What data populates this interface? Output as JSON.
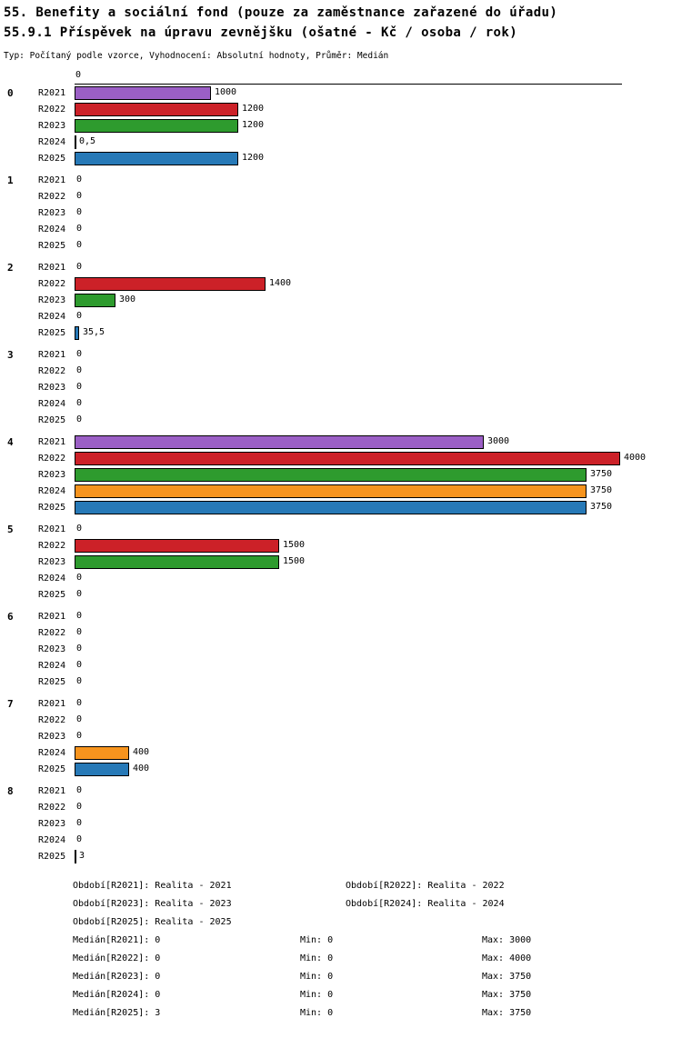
{
  "chart_data": {
    "type": "bar",
    "orientation": "horizontal",
    "title": "55. Benefity a sociální fond (pouze za zaměstnance zařazené do úřadu)",
    "subtitle": "55.9.1 Příspěvek na úpravu zevnějšku (ošatné - Kč / osoba / rok)",
    "meta": "Typ: Počítaný podle vzorce, Vyhodnocení: Absolutní hodnoty, Průměr: Medián",
    "axis_top_tick": "0",
    "xlim": [
      0,
      4000
    ],
    "grid": false,
    "legend_position": "bottom",
    "series_labels": [
      "R2021",
      "R2022",
      "R2023",
      "R2024",
      "R2025"
    ],
    "series_colors": [
      "#9B5FC5",
      "#CC2128",
      "#2E9B2E",
      "#F7941E",
      "#2779B7"
    ],
    "groups": [
      {
        "label": "0",
        "values": [
          1000,
          1200,
          1200,
          0.5,
          1200
        ],
        "display": [
          "1000",
          "1200",
          "1200",
          "0,5",
          "1200"
        ]
      },
      {
        "label": "1",
        "values": [
          0,
          0,
          0,
          0,
          0
        ],
        "display": [
          "0",
          "0",
          "0",
          "0",
          "0"
        ]
      },
      {
        "label": "2",
        "values": [
          0,
          1400,
          300,
          0,
          35.5
        ],
        "display": [
          "0",
          "1400",
          "300",
          "0",
          "35,5"
        ]
      },
      {
        "label": "3",
        "values": [
          0,
          0,
          0,
          0,
          0
        ],
        "display": [
          "0",
          "0",
          "0",
          "0",
          "0"
        ]
      },
      {
        "label": "4",
        "values": [
          3000,
          4000,
          3750,
          3750,
          3750
        ],
        "display": [
          "3000",
          "4000",
          "3750",
          "3750",
          "3750"
        ]
      },
      {
        "label": "5",
        "values": [
          0,
          1500,
          1500,
          0,
          0
        ],
        "display": [
          "0",
          "1500",
          "1500",
          "0",
          "0"
        ]
      },
      {
        "label": "6",
        "values": [
          0,
          0,
          0,
          0,
          0
        ],
        "display": [
          "0",
          "0",
          "0",
          "0",
          "0"
        ]
      },
      {
        "label": "7",
        "values": [
          0,
          0,
          0,
          400,
          400
        ],
        "display": [
          "0",
          "0",
          "0",
          "400",
          "400"
        ]
      },
      {
        "label": "8",
        "values": [
          0,
          0,
          0,
          0,
          3
        ],
        "display": [
          "0",
          "0",
          "0",
          "0",
          "3"
        ]
      }
    ],
    "legend_periods": [
      "Období[R2021]: Realita - 2021",
      "Období[R2022]: Realita - 2022",
      "Období[R2023]: Realita - 2023",
      "Období[R2024]: Realita - 2024",
      "Období[R2025]: Realita - 2025"
    ],
    "stats": [
      {
        "median": "Medián[R2021]: 0",
        "min": "Min: 0",
        "max": "Max: 3000"
      },
      {
        "median": "Medián[R2022]: 0",
        "min": "Min: 0",
        "max": "Max: 4000"
      },
      {
        "median": "Medián[R2023]: 0",
        "min": "Min: 0",
        "max": "Max: 3750"
      },
      {
        "median": "Medián[R2024]: 0",
        "min": "Min: 0",
        "max": "Max: 3750"
      },
      {
        "median": "Medián[R2025]: 3",
        "min": "Min: 0",
        "max": "Max: 3750"
      }
    ]
  }
}
